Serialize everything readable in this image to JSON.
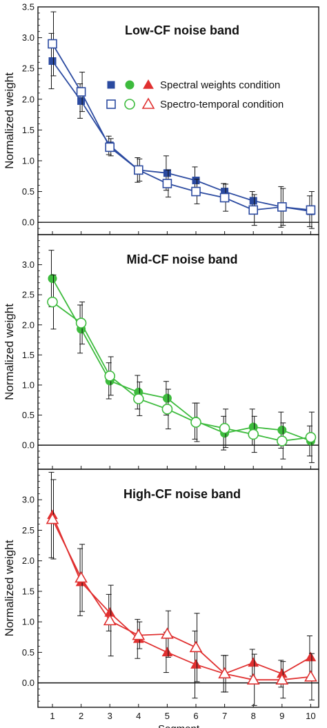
{
  "chart_data": {
    "type": "line",
    "xlabel": "Segment",
    "ylabel": "Normalized weight",
    "x": [
      1,
      2,
      3,
      4,
      5,
      6,
      7,
      8,
      9,
      10
    ],
    "legend": {
      "position": "top-right",
      "entries": [
        {
          "label": "Spectral weights condition",
          "fill": "solid"
        },
        {
          "label": "Spectro-temporal condition",
          "fill": "open"
        }
      ]
    },
    "panels": [
      {
        "title": "Low-CF noise band",
        "color": "#2b4aa0",
        "marker": "square",
        "ylim": [
          -0.2,
          3.5
        ],
        "yticks": [
          "0.0",
          "0.5",
          "1.0",
          "1.5",
          "2.0",
          "2.5",
          "3.0",
          "3.5"
        ],
        "series": [
          {
            "name": "Spectral weights condition",
            "fill": "solid",
            "values": [
              2.62,
              1.97,
              1.25,
              0.85,
              0.8,
              0.68,
              0.5,
              0.35,
              0.25,
              0.18
            ],
            "err": [
              0.45,
              0.28,
              0.15,
              0.2,
              0.28,
              0.22,
              0.13,
              0.15,
              0.33,
              0.25
            ]
          },
          {
            "name": "Spectro-temporal condition",
            "fill": "open",
            "values": [
              2.9,
              2.12,
              1.22,
              0.85,
              0.63,
              0.5,
              0.4,
              0.2,
              0.25,
              0.2
            ],
            "err": [
              0.52,
              0.32,
              0.14,
              0.18,
              0.22,
              0.2,
              0.22,
              0.25,
              0.3,
              0.3
            ]
          }
        ]
      },
      {
        "title": "Mid-CF noise band",
        "color": "#3dbb3d",
        "marker": "circle",
        "ylim": [
          -0.4,
          3.5
        ],
        "yticks": [
          "0.0",
          "0.5",
          "1.0",
          "1.5",
          "2.0",
          "2.5",
          "3.0"
        ],
        "series": [
          {
            "name": "Spectral weights condition",
            "fill": "solid",
            "values": [
              2.77,
              1.93,
              1.07,
              0.88,
              0.78,
              0.4,
              0.2,
              0.3,
              0.25,
              0.07
            ],
            "err": [
              0.47,
              0.4,
              0.3,
              0.28,
              0.28,
              0.3,
              0.28,
              0.3,
              0.3,
              0.25
            ]
          },
          {
            "name": "Spectro-temporal condition",
            "fill": "open",
            "values": [
              2.38,
              2.03,
              1.15,
              0.77,
              0.6,
              0.38,
              0.28,
              0.18,
              0.07,
              0.13
            ],
            "err": [
              0.45,
              0.35,
              0.32,
              0.28,
              0.33,
              0.32,
              0.32,
              0.3,
              0.3,
              0.42
            ]
          }
        ]
      },
      {
        "title": "High-CF noise band",
        "color": "#e03030",
        "marker": "triangle",
        "ylim": [
          -0.4,
          3.5
        ],
        "yticks": [
          "0.0",
          "0.5",
          "1.0",
          "1.5",
          "2.0",
          "2.5",
          "3.0"
        ],
        "series": [
          {
            "name": "Spectral weights condition",
            "fill": "solid",
            "values": [
              2.75,
              1.65,
              1.15,
              0.72,
              0.5,
              0.3,
              0.15,
              0.33,
              0.15,
              0.42
            ],
            "err": [
              0.7,
              0.55,
              0.3,
              0.32,
              0.33,
              0.55,
              0.3,
              0.22,
              0.22,
              0.35
            ]
          },
          {
            "name": "Spectro-temporal condition",
            "fill": "open",
            "values": [
              2.68,
              1.72,
              1.02,
              0.78,
              0.8,
              0.58,
              0.15,
              0.05,
              0.05,
              0.1
            ],
            "err": [
              0.65,
              0.55,
              0.58,
              0.22,
              0.38,
              0.56,
              0.3,
              0.42,
              0.3,
              0.38
            ]
          }
        ]
      }
    ]
  }
}
